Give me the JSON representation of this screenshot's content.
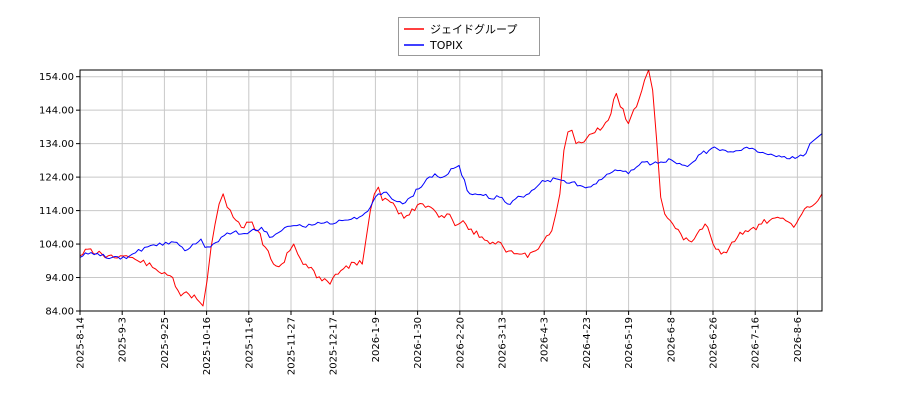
{
  "chart_data": {
    "type": "line",
    "title": "",
    "xlabel": "",
    "ylabel": "",
    "ylim": [
      84.0,
      156.0
    ],
    "yticks": [
      "84.00",
      "94.00",
      "104.00",
      "114.00",
      "124.00",
      "134.00",
      "144.00",
      "154.00"
    ],
    "xticks": [
      "2025-8-14",
      "2025-9-3",
      "2025-9-25",
      "2025-10-16",
      "2025-11-6",
      "2025-11-27",
      "2025-12-17",
      "2026-1-9",
      "2026-1-30",
      "2026-2-20",
      "2026-3-13",
      "2026-4-3",
      "2026-4-23",
      "2026-5-19",
      "2026-6-8",
      "2026-6-26",
      "2026-7-16",
      "2026-8-6"
    ],
    "grid": true,
    "legend_position": "top-center",
    "n_points": 245,
    "series": [
      {
        "name": "ジェイドグループ",
        "color": "#ff0000",
        "keypoints": [
          [
            0,
            100.5
          ],
          [
            4,
            102.5
          ],
          [
            8,
            101.0
          ],
          [
            14,
            100.5
          ],
          [
            20,
            100.5
          ],
          [
            26,
            100.0
          ],
          [
            30,
            98.5
          ],
          [
            36,
            97.0
          ],
          [
            42,
            95.5
          ],
          [
            46,
            94.0
          ],
          [
            50,
            88.5
          ],
          [
            54,
            89.0
          ],
          [
            58,
            87.5
          ],
          [
            61,
            85.5
          ],
          [
            63,
            93.0
          ],
          [
            65,
            103.0
          ],
          [
            67,
            110.0
          ],
          [
            69,
            116.0
          ],
          [
            71,
            119.0
          ],
          [
            73,
            115.0
          ],
          [
            76,
            112.0
          ],
          [
            80,
            109.0
          ],
          [
            84,
            110.5
          ],
          [
            88,
            108.0
          ],
          [
            92,
            103.0
          ],
          [
            96,
            98.0
          ],
          [
            100,
            98.0
          ],
          [
            104,
            102.0
          ],
          [
            106,
            104.0
          ],
          [
            108,
            101.0
          ],
          [
            112,
            98.0
          ],
          [
            116,
            96.0
          ],
          [
            120,
            93.0
          ],
          [
            124,
            92.0
          ],
          [
            128,
            95.0
          ],
          [
            132,
            97.5
          ],
          [
            136,
            98.5
          ],
          [
            140,
            98.0
          ],
          [
            142,
            106.0
          ],
          [
            144,
            114.0
          ],
          [
            146,
            119.0
          ],
          [
            148,
            121.0
          ],
          [
            150,
            117.0
          ],
          [
            154,
            116.5
          ],
          [
            158,
            113.0
          ],
          [
            162,
            112.5
          ],
          [
            166,
            114.0
          ],
          [
            170,
            116.0
          ],
          [
            174,
            115.0
          ],
          [
            178,
            112.0
          ],
          [
            182,
            113.0
          ],
          [
            186,
            109.5
          ],
          [
            190,
            111.0
          ],
          [
            194,
            108.5
          ],
          [
            198,
            106.0
          ],
          [
            202,
            105.0
          ],
          [
            206,
            104.0
          ],
          [
            210,
            103.0
          ],
          [
            214,
            102.0
          ],
          [
            218,
            101.0
          ],
          [
            222,
            100.0
          ],
          [
            226,
            102.0
          ],
          [
            230,
            105.0
          ],
          [
            234,
            108.0
          ],
          [
            236,
            113.0
          ],
          [
            238,
            119.0
          ],
          [
            240,
            132.0
          ],
          [
            242,
            137.5
          ],
          [
            244,
            138.0
          ],
          [
            246,
            134.0
          ],
          [
            250,
            134.5
          ],
          [
            254,
            137.0
          ],
          [
            258,
            138.0
          ],
          [
            262,
            141.0
          ],
          [
            266,
            149.0
          ],
          [
            268,
            145.0
          ],
          [
            272,
            140.0
          ],
          [
            276,
            145.0
          ],
          [
            280,
            153.0
          ],
          [
            282,
            156.0
          ],
          [
            284,
            150.0
          ],
          [
            286,
            135.0
          ],
          [
            288,
            118.0
          ],
          [
            290,
            113.0
          ],
          [
            294,
            110.0
          ],
          [
            298,
            107.0
          ],
          [
            302,
            105.0
          ],
          [
            306,
            107.0
          ],
          [
            310,
            110.0
          ],
          [
            314,
            104.0
          ],
          [
            318,
            101.0
          ],
          [
            322,
            103.0
          ],
          [
            326,
            106.0
          ],
          [
            330,
            108.0
          ],
          [
            334,
            109.0
          ],
          [
            338,
            110.0
          ],
          [
            342,
            111.0
          ],
          [
            346,
            112.0
          ],
          [
            350,
            111.0
          ],
          [
            354,
            109.0
          ],
          [
            358,
            113.0
          ],
          [
            362,
            115.0
          ],
          [
            366,
            117.0
          ],
          [
            368,
            119.0
          ]
        ]
      },
      {
        "name": "TOPIX",
        "color": "#0000ff",
        "keypoints": [
          [
            0,
            100.0
          ],
          [
            4,
            101.0
          ],
          [
            10,
            100.5
          ],
          [
            16,
            100.0
          ],
          [
            20,
            99.5
          ],
          [
            26,
            101.0
          ],
          [
            32,
            103.0
          ],
          [
            38,
            103.5
          ],
          [
            44,
            104.0
          ],
          [
            48,
            104.5
          ],
          [
            52,
            102.0
          ],
          [
            56,
            104.0
          ],
          [
            60,
            105.5
          ],
          [
            62,
            103.0
          ],
          [
            66,
            104.0
          ],
          [
            70,
            106.0
          ],
          [
            76,
            107.5
          ],
          [
            80,
            107.0
          ],
          [
            86,
            108.5
          ],
          [
            90,
            109.0
          ],
          [
            94,
            106.0
          ],
          [
            100,
            108.0
          ],
          [
            106,
            109.5
          ],
          [
            112,
            109.0
          ],
          [
            118,
            110.5
          ],
          [
            124,
            110.0
          ],
          [
            130,
            111.0
          ],
          [
            136,
            112.0
          ],
          [
            140,
            112.5
          ],
          [
            144,
            115.0
          ],
          [
            148,
            119.0
          ],
          [
            152,
            119.5
          ],
          [
            156,
            117.0
          ],
          [
            160,
            116.0
          ],
          [
            164,
            118.0
          ],
          [
            168,
            120.5
          ],
          [
            172,
            123.5
          ],
          [
            176,
            125.0
          ],
          [
            180,
            124.0
          ],
          [
            184,
            126.5
          ],
          [
            188,
            127.5
          ],
          [
            192,
            120.0
          ],
          [
            196,
            119.0
          ],
          [
            200,
            118.5
          ],
          [
            204,
            117.5
          ],
          [
            208,
            118.0
          ],
          [
            212,
            116.0
          ],
          [
            216,
            117.5
          ],
          [
            220,
            118.0
          ],
          [
            224,
            120.0
          ],
          [
            228,
            122.0
          ],
          [
            232,
            123.0
          ],
          [
            236,
            123.5
          ],
          [
            240,
            123.0
          ],
          [
            244,
            122.5
          ],
          [
            248,
            121.5
          ],
          [
            252,
            121.0
          ],
          [
            256,
            122.0
          ],
          [
            260,
            124.0
          ],
          [
            264,
            125.5
          ],
          [
            268,
            126.0
          ],
          [
            272,
            125.0
          ],
          [
            276,
            127.0
          ],
          [
            280,
            128.5
          ],
          [
            284,
            128.0
          ],
          [
            288,
            128.5
          ],
          [
            292,
            129.5
          ],
          [
            296,
            128.0
          ],
          [
            300,
            127.5
          ],
          [
            304,
            128.5
          ],
          [
            308,
            131.0
          ],
          [
            312,
            132.0
          ],
          [
            316,
            132.5
          ],
          [
            320,
            132.0
          ],
          [
            324,
            131.5
          ],
          [
            328,
            132.0
          ],
          [
            332,
            132.5
          ],
          [
            336,
            131.5
          ],
          [
            340,
            131.0
          ],
          [
            344,
            130.5
          ],
          [
            348,
            130.0
          ],
          [
            352,
            129.5
          ],
          [
            356,
            130.0
          ],
          [
            360,
            131.0
          ],
          [
            362,
            134.0
          ],
          [
            364,
            135.0
          ],
          [
            366,
            136.0
          ],
          [
            368,
            137.0
          ]
        ]
      }
    ]
  }
}
